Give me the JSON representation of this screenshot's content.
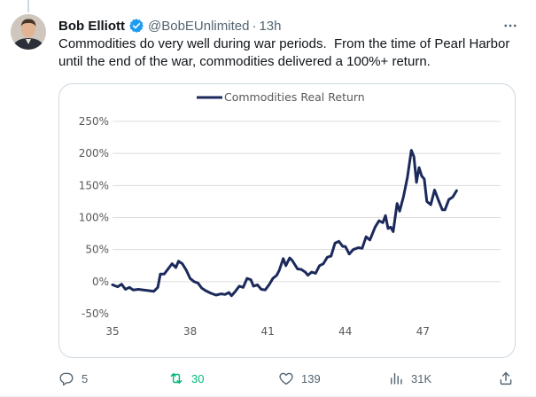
{
  "tweet": {
    "author_name": "Bob Elliott",
    "handle": "@BobEUnlimited",
    "separator": "·",
    "time": "13h",
    "text": "Commodities do very well during war periods.  From the time of Pearl Harbor until the end of the war, commodities delivered a 100%+ return."
  },
  "actions": {
    "replies": "5",
    "retweets": "30",
    "likes": "139",
    "views": "31K"
  },
  "colors": {
    "series": "#1b2a5b",
    "verified": "#1d9bf0",
    "retweet_active": "#00ba7c",
    "muted": "#536471"
  },
  "icons": [
    "verified-badge-icon",
    "more-icon",
    "reply-icon",
    "retweet-icon",
    "like-icon",
    "views-icon",
    "share-icon"
  ],
  "chart_data": {
    "type": "line",
    "legend": "Commodities Real Return",
    "legend_position": "top-center",
    "grid": true,
    "x_ticks": [
      35,
      38,
      41,
      44,
      47
    ],
    "y_ticks": [
      "250%",
      "200%",
      "150%",
      "100%",
      "50%",
      "0%",
      "-50%"
    ],
    "y_tick_values": [
      250,
      200,
      150,
      100,
      50,
      0,
      -50
    ],
    "xlim": [
      35,
      50.0
    ],
    "ylim": [
      -50,
      250
    ],
    "series": [
      {
        "name": "Commodities Real Return",
        "points": [
          [
            35.0,
            -5
          ],
          [
            35.2,
            -8
          ],
          [
            35.35,
            -4
          ],
          [
            35.5,
            -12
          ],
          [
            35.65,
            -9
          ],
          [
            35.8,
            -13
          ],
          [
            36.0,
            -12
          ],
          [
            36.2,
            -13
          ],
          [
            36.4,
            -14
          ],
          [
            36.6,
            -15
          ],
          [
            36.75,
            -9
          ],
          [
            36.85,
            12
          ],
          [
            37.0,
            12
          ],
          [
            37.15,
            20
          ],
          [
            37.3,
            28
          ],
          [
            37.45,
            22
          ],
          [
            37.55,
            32
          ],
          [
            37.7,
            28
          ],
          [
            37.85,
            18
          ],
          [
            38.0,
            5
          ],
          [
            38.15,
            0
          ],
          [
            38.3,
            -2
          ],
          [
            38.45,
            -10
          ],
          [
            38.6,
            -14
          ],
          [
            38.8,
            -18
          ],
          [
            39.0,
            -21
          ],
          [
            39.2,
            -19
          ],
          [
            39.35,
            -20
          ],
          [
            39.5,
            -17
          ],
          [
            39.6,
            -22
          ],
          [
            39.75,
            -15
          ],
          [
            39.9,
            -7
          ],
          [
            40.05,
            -9
          ],
          [
            40.2,
            5
          ],
          [
            40.35,
            3
          ],
          [
            40.45,
            -7
          ],
          [
            40.6,
            -5
          ],
          [
            40.75,
            -12
          ],
          [
            40.9,
            -13
          ],
          [
            41.05,
            -5
          ],
          [
            41.2,
            5
          ],
          [
            41.35,
            10
          ],
          [
            41.45,
            18
          ],
          [
            41.6,
            36
          ],
          [
            41.7,
            25
          ],
          [
            41.85,
            37
          ],
          [
            41.95,
            33
          ],
          [
            42.15,
            20
          ],
          [
            42.3,
            19
          ],
          [
            42.45,
            15
          ],
          [
            42.55,
            10
          ],
          [
            42.7,
            15
          ],
          [
            42.85,
            13
          ],
          [
            43.0,
            25
          ],
          [
            43.15,
            28
          ],
          [
            43.3,
            38
          ],
          [
            43.45,
            40
          ],
          [
            43.6,
            60
          ],
          [
            43.75,
            63
          ],
          [
            43.9,
            55
          ],
          [
            44.0,
            55
          ],
          [
            44.15,
            43
          ],
          [
            44.3,
            50
          ],
          [
            44.5,
            53
          ],
          [
            44.65,
            52
          ],
          [
            44.8,
            70
          ],
          [
            44.95,
            65
          ],
          [
            45.15,
            85
          ],
          [
            45.3,
            95
          ],
          [
            45.45,
            92
          ],
          [
            45.55,
            103
          ],
          [
            45.65,
            83
          ],
          [
            45.75,
            85
          ],
          [
            45.85,
            78
          ],
          [
            46.0,
            122
          ],
          [
            46.1,
            110
          ],
          [
            46.25,
            133
          ],
          [
            46.4,
            163
          ],
          [
            46.55,
            205
          ],
          [
            46.65,
            195
          ],
          [
            46.75,
            155
          ],
          [
            46.85,
            178
          ],
          [
            46.95,
            165
          ],
          [
            47.05,
            160
          ],
          [
            47.15,
            125
          ],
          [
            47.3,
            120
          ],
          [
            47.45,
            143
          ],
          [
            47.6,
            127
          ],
          [
            47.75,
            112
          ],
          [
            47.85,
            112
          ],
          [
            48.0,
            128
          ],
          [
            48.15,
            132
          ],
          [
            48.3,
            142
          ]
        ]
      }
    ]
  }
}
